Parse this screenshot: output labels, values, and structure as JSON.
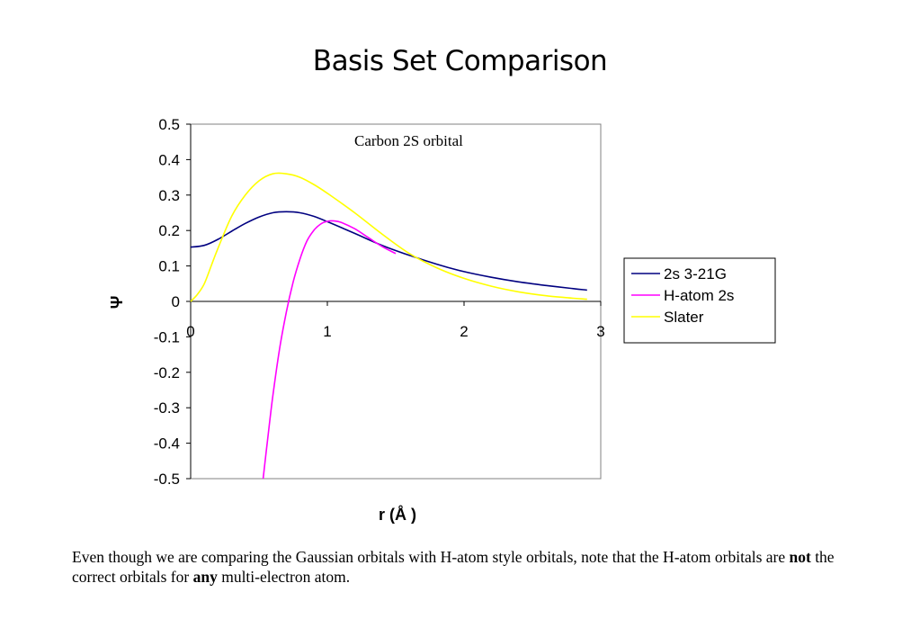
{
  "slide": {
    "title": "Basis Set Comparison"
  },
  "footnote": {
    "part1": "Even though we are comparing the Gaussian orbitals with H-atom style orbitals, note that the H-atom orbitals are ",
    "bold1": "not",
    "part2": " the correct orbitals for ",
    "bold2": "any",
    "part3": " multi-electron atom."
  },
  "chart_data": {
    "type": "line",
    "title": "",
    "annotation": "Carbon 2S orbital",
    "xlabel": "r (Å )",
    "ylabel": "Ψ",
    "xlim": [
      0,
      3
    ],
    "ylim": [
      -0.5,
      0.5
    ],
    "xticks": [
      0,
      1,
      2,
      3
    ],
    "yticks": [
      0.5,
      0.4,
      0.3,
      0.2,
      0.1,
      0,
      -0.1,
      -0.2,
      -0.3,
      -0.4,
      -0.5
    ],
    "ytick_labels": [
      "0.5",
      "0.4",
      "0.3",
      "0.2",
      "0.1",
      "0",
      "-0.1",
      "-0.2",
      "-0.3",
      "-0.4",
      "-0.5"
    ],
    "grid": false,
    "legend_position": "right",
    "series": [
      {
        "name": "2s 3-21G",
        "color": "#000080",
        "x": [
          0,
          0.1,
          0.2,
          0.3,
          0.4,
          0.5,
          0.6,
          0.7,
          0.8,
          0.9,
          1.0,
          1.2,
          1.4,
          1.6,
          1.8,
          2.0,
          2.2,
          2.4,
          2.6,
          2.8,
          2.9
        ],
        "y": [
          0.153,
          0.158,
          0.175,
          0.198,
          0.22,
          0.238,
          0.25,
          0.253,
          0.25,
          0.24,
          0.225,
          0.192,
          0.158,
          0.13,
          0.105,
          0.084,
          0.068,
          0.055,
          0.045,
          0.036,
          0.032
        ]
      },
      {
        "name": "H-atom 2s",
        "color": "#ff00ff",
        "x": [
          0.53,
          0.56,
          0.6,
          0.65,
          0.7,
          0.75,
          0.8,
          0.85,
          0.9,
          0.95,
          1.0,
          1.05,
          1.1,
          1.2,
          1.3,
          1.4,
          1.5
        ],
        "y": [
          -0.5,
          -0.4,
          -0.27,
          -0.135,
          -0.03,
          0.055,
          0.12,
          0.17,
          0.2,
          0.218,
          0.226,
          0.227,
          0.223,
          0.205,
          0.18,
          0.155,
          0.135
        ]
      },
      {
        "name": "Slater",
        "color": "#ffff00",
        "x": [
          0,
          0.05,
          0.1,
          0.15,
          0.2,
          0.3,
          0.4,
          0.5,
          0.6,
          0.7,
          0.8,
          0.9,
          1.0,
          1.2,
          1.4,
          1.6,
          1.8,
          2.0,
          2.2,
          2.4,
          2.6,
          2.8,
          2.9
        ],
        "y": [
          0,
          0.02,
          0.05,
          0.1,
          0.15,
          0.24,
          0.3,
          0.34,
          0.36,
          0.36,
          0.35,
          0.33,
          0.305,
          0.25,
          0.19,
          0.135,
          0.095,
          0.065,
          0.043,
          0.027,
          0.016,
          0.009,
          0.006
        ]
      }
    ]
  }
}
